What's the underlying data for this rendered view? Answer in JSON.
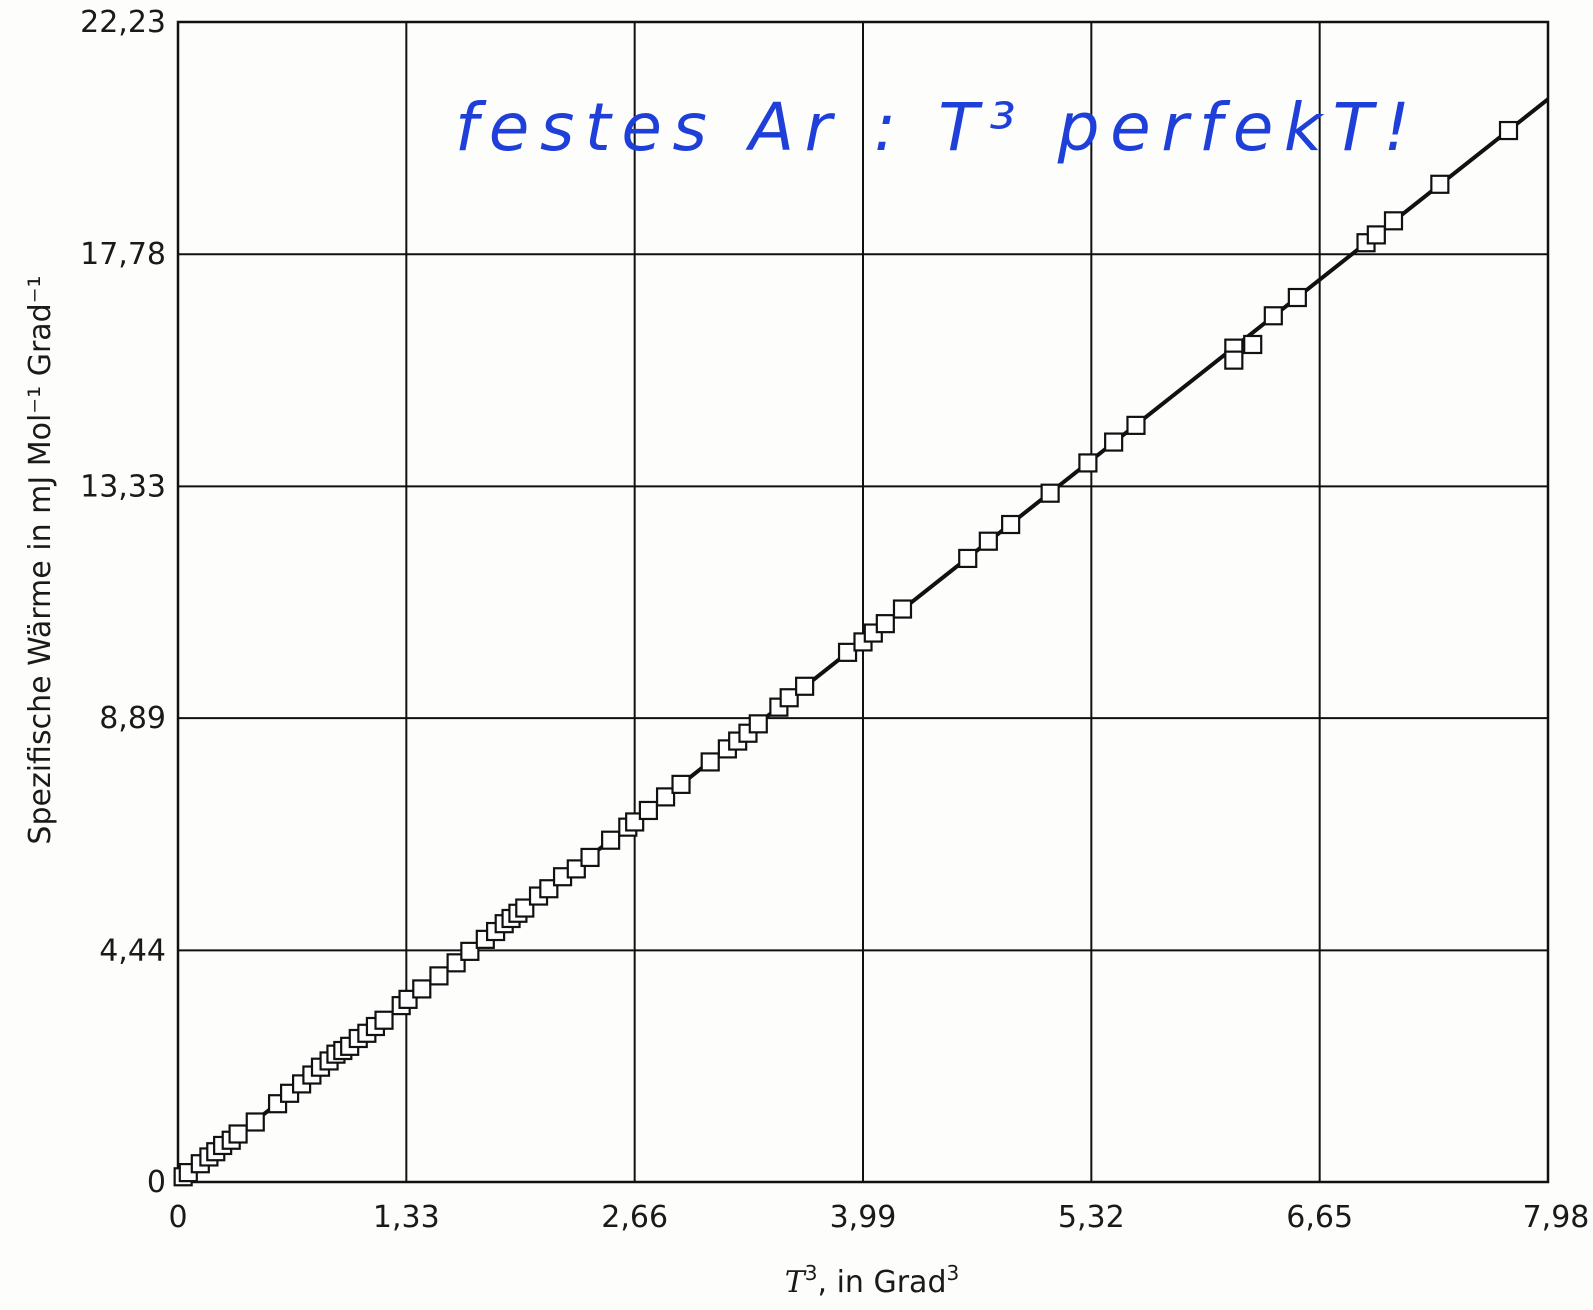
{
  "chart_data": {
    "type": "scatter",
    "title": "",
    "xlabel": {
      "variable": "T",
      "exponent": "3",
      "suffix": ", in Grad",
      "suffix_exponent": "3"
    },
    "ylabel": "Spezifische Wärme in mJ Mol⁻¹ Grad⁻¹",
    "xlim": [
      0,
      7.98
    ],
    "ylim": [
      0,
      22.23
    ],
    "x_ticks": [
      "0",
      "1,33",
      "2,66",
      "3,99",
      "5,32",
      "6,65",
      "7,98"
    ],
    "y_ticks": [
      "0",
      "4,44",
      "8,89",
      "13,33",
      "17,78",
      "22,23"
    ],
    "x_tick_values": [
      0,
      1.33,
      2.66,
      3.99,
      5.32,
      6.65,
      7.98
    ],
    "y_tick_values": [
      0,
      4.44,
      8.89,
      13.33,
      17.78,
      22.23
    ],
    "grid": true,
    "fit_line": {
      "x": [
        0,
        7.98
      ],
      "y": [
        0,
        20.75
      ]
    },
    "annotation": "festes Ar : T³ perfekT!",
    "series": [
      {
        "points": [
          [
            0.03,
            0.1
          ],
          [
            0.06,
            0.18
          ],
          [
            0.13,
            0.35
          ],
          [
            0.18,
            0.48
          ],
          [
            0.22,
            0.58
          ],
          [
            0.26,
            0.7
          ],
          [
            0.31,
            0.8
          ],
          [
            0.35,
            0.92
          ],
          [
            0.45,
            1.15
          ],
          [
            0.58,
            1.5
          ],
          [
            0.65,
            1.7
          ],
          [
            0.72,
            1.88
          ],
          [
            0.78,
            2.05
          ],
          [
            0.83,
            2.2
          ],
          [
            0.88,
            2.32
          ],
          [
            0.92,
            2.45
          ],
          [
            0.96,
            2.52
          ],
          [
            1.0,
            2.6
          ],
          [
            1.05,
            2.75
          ],
          [
            1.1,
            2.85
          ],
          [
            1.15,
            2.98
          ],
          [
            1.2,
            3.1
          ],
          [
            1.3,
            3.38
          ],
          [
            1.34,
            3.5
          ],
          [
            1.42,
            3.7
          ],
          [
            1.52,
            3.95
          ],
          [
            1.62,
            4.2
          ],
          [
            1.7,
            4.42
          ],
          [
            1.79,
            4.65
          ],
          [
            1.85,
            4.8
          ],
          [
            1.9,
            4.95
          ],
          [
            1.94,
            5.05
          ],
          [
            1.98,
            5.15
          ],
          [
            2.02,
            5.25
          ],
          [
            2.1,
            5.48
          ],
          [
            2.16,
            5.62
          ],
          [
            2.24,
            5.85
          ],
          [
            2.32,
            6.0
          ],
          [
            2.4,
            6.22
          ],
          [
            2.52,
            6.55
          ],
          [
            2.62,
            6.8
          ],
          [
            2.66,
            6.9
          ],
          [
            2.74,
            7.12
          ],
          [
            2.84,
            7.38
          ],
          [
            2.93,
            7.62
          ],
          [
            3.1,
            8.05
          ],
          [
            3.2,
            8.3
          ],
          [
            3.26,
            8.45
          ],
          [
            3.32,
            8.6
          ],
          [
            3.38,
            8.78
          ],
          [
            3.5,
            9.1
          ],
          [
            3.56,
            9.28
          ],
          [
            3.65,
            9.5
          ],
          [
            3.9,
            10.15
          ],
          [
            3.99,
            10.35
          ],
          [
            4.05,
            10.52
          ],
          [
            4.12,
            10.7
          ],
          [
            4.22,
            10.98
          ],
          [
            4.6,
            11.95
          ],
          [
            4.72,
            12.28
          ],
          [
            4.85,
            12.6
          ],
          [
            5.08,
            13.2
          ],
          [
            5.3,
            13.78
          ],
          [
            5.45,
            14.18
          ],
          [
            5.58,
            14.5
          ],
          [
            6.15,
            15.98
          ],
          [
            6.15,
            15.75
          ],
          [
            6.26,
            16.05
          ],
          [
            6.38,
            16.6
          ],
          [
            6.52,
            16.95
          ],
          [
            6.92,
            18.0
          ],
          [
            6.98,
            18.15
          ],
          [
            7.08,
            18.42
          ],
          [
            7.35,
            19.12
          ],
          [
            7.75,
            20.15
          ]
        ]
      }
    ]
  }
}
